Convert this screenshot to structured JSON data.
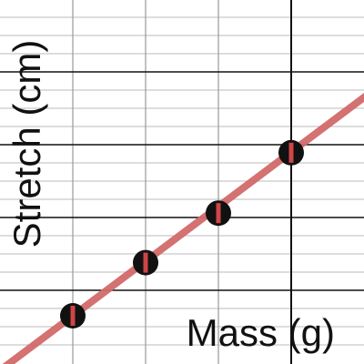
{
  "chart_data": {
    "type": "scatter",
    "title": "",
    "xlabel": "Mass (g)",
    "ylabel": "Stretch (cm)",
    "xlim": [
      0,
      5
    ],
    "ylim": [
      0,
      5
    ],
    "grid": true,
    "points": [
      {
        "x": 1,
        "y": 0.65
      },
      {
        "x": 2,
        "y": 1.38
      },
      {
        "x": 3,
        "y": 2.06
      },
      {
        "x": 4,
        "y": 2.89
      }
    ],
    "fit_line": {
      "slope": 0.75,
      "intercept": -0.1
    },
    "colors": {
      "grid_minor": "#bbbbbb",
      "grid_major": "#111111",
      "point": "#111111",
      "point_error": "#d04545",
      "fit_line": "#d26a6a"
    }
  }
}
